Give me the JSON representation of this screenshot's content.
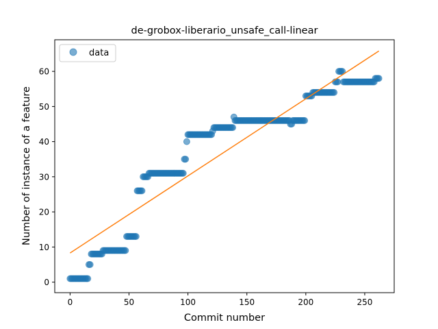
{
  "chart_data": {
    "type": "scatter",
    "title": "de-grobox-liberario_unsafe_call-linear",
    "xlabel": "Commit number",
    "ylabel": "Number of instance of a feature",
    "xlim": [
      -13,
      275
    ],
    "ylim": [
      -3,
      69
    ],
    "xticks": [
      0,
      50,
      100,
      150,
      200,
      250
    ],
    "yticks": [
      0,
      10,
      20,
      30,
      40,
      50,
      60
    ],
    "legend": {
      "position": "top-left",
      "label": "data"
    },
    "colors": {
      "data": "#1f77b4",
      "fit": "#ff7f0e"
    },
    "data_segments": [
      {
        "x_start": 0,
        "x_end": 15,
        "y": 1
      },
      {
        "x_start": 16,
        "x_end": 17,
        "y": 5
      },
      {
        "x_start": 18,
        "x_end": 27,
        "y": 8
      },
      {
        "x_start": 28,
        "x_end": 47,
        "y": 9
      },
      {
        "x_start": 48,
        "x_end": 56,
        "y": 13
      },
      {
        "x_start": 57,
        "x_end": 61,
        "y": 26
      },
      {
        "x_start": 62,
        "x_end": 66,
        "y": 30
      },
      {
        "x_start": 67,
        "x_end": 96,
        "y": 31
      },
      {
        "x_start": 97,
        "x_end": 98,
        "y": 35
      },
      {
        "x_start": 99,
        "x_end": 99,
        "y": 40
      },
      {
        "x_start": 100,
        "x_end": 120,
        "y": 42
      },
      {
        "x_start": 121,
        "x_end": 121,
        "y": 43
      },
      {
        "x_start": 122,
        "x_end": 138,
        "y": 44
      },
      {
        "x_start": 139,
        "x_end": 139,
        "y": 47
      },
      {
        "x_start": 140,
        "x_end": 186,
        "y": 46
      },
      {
        "x_start": 187,
        "x_end": 188,
        "y": 45
      },
      {
        "x_start": 189,
        "x_end": 199,
        "y": 46
      },
      {
        "x_start": 200,
        "x_end": 205,
        "y": 53
      },
      {
        "x_start": 206,
        "x_end": 224,
        "y": 54
      },
      {
        "x_start": 225,
        "x_end": 227,
        "y": 57
      },
      {
        "x_start": 228,
        "x_end": 231,
        "y": 60
      },
      {
        "x_start": 232,
        "x_end": 258,
        "y": 57
      },
      {
        "x_start": 259,
        "x_end": 262,
        "y": 58
      }
    ],
    "fit_line": {
      "x": [
        0,
        262
      ],
      "y": [
        8.3,
        65.8
      ]
    }
  }
}
